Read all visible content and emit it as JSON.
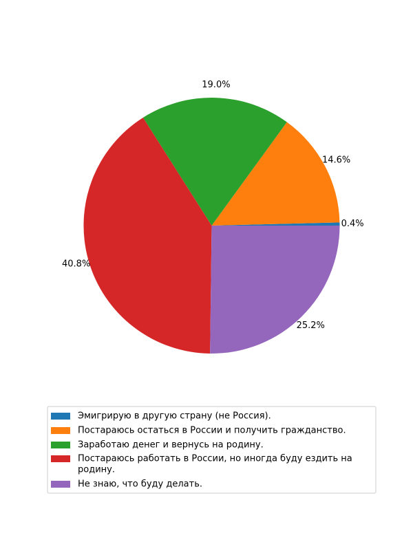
{
  "chart_data": {
    "type": "pie",
    "categories": [
      "Эмигрирую в другую страну (не Россия).",
      "Постараюсь остаться в России и получить гражданство.",
      "Заработаю денег и вернусь на родину.",
      "Постараюсь работать в России, но иногда буду ездить на родину.",
      "Не знаю, что буду делать."
    ],
    "legend_lines": [
      [
        "Эмигрирую в другую страну (не Россия)."
      ],
      [
        "Постараюсь остаться в России и получить гражданство."
      ],
      [
        "Заработаю денег и вернусь на родину."
      ],
      [
        "Постараюсь работать в России, но иногда буду ездить на",
        "родину."
      ],
      [
        "Не знаю, что буду делать."
      ]
    ],
    "values": [
      0.4,
      14.6,
      19.0,
      40.8,
      25.2
    ],
    "labels": [
      "0.4%",
      "14.6%",
      "19.0%",
      "40.8%",
      "25.2%"
    ],
    "colors": [
      "#1f77b4",
      "#ff7f0e",
      "#2ca02c",
      "#d62728",
      "#9467bd"
    ],
    "start_angle": 0,
    "direction": "counterclockwise",
    "legend_position": "bottom-center"
  }
}
